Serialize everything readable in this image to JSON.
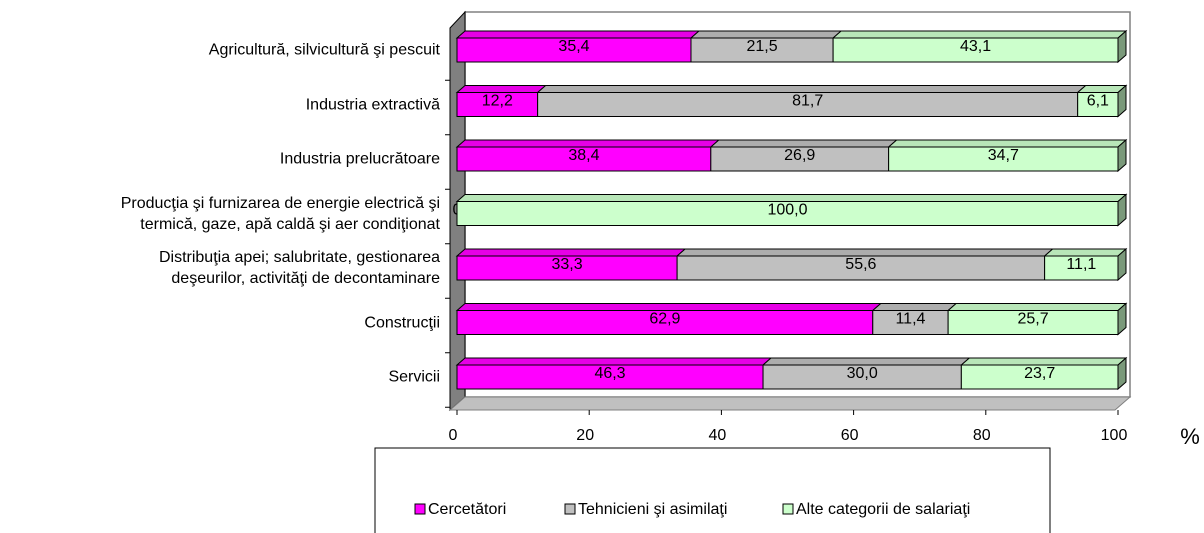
{
  "chart_data": {
    "type": "stacked_bar_horizontal",
    "categories": [
      "Agricultură, silvicultură şi pescuit",
      "Industria extractivă",
      "Industria prelucrătoare",
      "Producţia şi furnizarea de energie electrică şi\ntermică, gaze, apă caldă şi aer condiţionat",
      "Distribuţia apei; salubritate, gestionarea\ndeşeurilor, activităţi de decontaminare",
      "Construcţii",
      "Servicii"
    ],
    "series": [
      {
        "name": "Cercetători",
        "color": "#ff00ff",
        "values": [
          35.4,
          12.2,
          38.4,
          0,
          33.3,
          62.9,
          46.3
        ],
        "value_labels": [
          "35,4",
          "12,2",
          "38,4",
          "0",
          "33,3",
          "62,9",
          "46,3"
        ]
      },
      {
        "name": "Tehnicieni şi asimilaţi",
        "color": "#c0c0c0",
        "values": [
          21.5,
          81.7,
          26.9,
          0,
          55.6,
          11.4,
          30.0
        ],
        "value_labels": [
          "21,5",
          "81,7",
          "26,9",
          null,
          "55,6",
          "11,4",
          "30,0"
        ]
      },
      {
        "name": "Alte categorii de salariaţi",
        "color": "#ccffcc",
        "values": [
          43.1,
          6.1,
          34.7,
          100.0,
          11.1,
          25.7,
          23.7
        ],
        "value_labels": [
          "43,1",
          "6,1",
          "34,7",
          "100,0",
          "11,1",
          "25,7",
          "23,7"
        ]
      }
    ],
    "xlabel": "%",
    "xlim": [
      0,
      100
    ],
    "xticks": [
      0,
      20,
      40,
      60,
      80,
      100
    ],
    "legend": "bottom"
  }
}
